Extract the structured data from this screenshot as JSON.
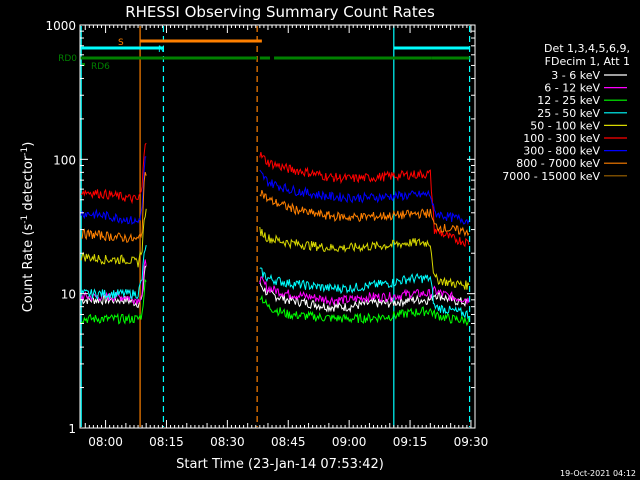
{
  "chart_data": {
    "type": "line",
    "title": "RHESSI Observing Summary Count Rates",
    "xlabel": "Start Time (23-Jan-14 07:53:42)",
    "ylabel_parts": [
      "Count Rate (s",
      "-1",
      " detector",
      "-1",
      ")"
    ],
    "y_scale": "log",
    "ylim": [
      1,
      1000
    ],
    "xlim": [
      "07:53:42",
      "09:31:00"
    ],
    "x_tick_labels": [
      "08:00",
      "08:15",
      "08:30",
      "08:45",
      "09:00",
      "09:15",
      "09:30"
    ],
    "y_tick_labels": [
      "1",
      "10",
      "100",
      "1000"
    ],
    "legend_header": [
      "Det 1,3,4,5,6,9,",
      "FDecim 1, Att 1"
    ],
    "timestamp": "19-Oct-2021 04:12",
    "flags": [
      {
        "label": "S",
        "color": "#ff8000",
        "segments": [
          [
            "08:08:30",
            "08:38:30"
          ]
        ]
      },
      {
        "label": "N",
        "color": "#00ffff",
        "segments": [
          [
            "07:53:42",
            "08:14:15"
          ],
          [
            "09:11:00",
            "09:29:40"
          ]
        ]
      },
      {
        "label": "RD0",
        "color": "#008000",
        "segments": [
          [
            "07:53:42",
            "08:37:20"
          ],
          [
            "08:38:00",
            "08:40:30"
          ],
          [
            "08:41:30",
            "09:20:20"
          ],
          [
            "09:20:20",
            "09:29:40"
          ]
        ]
      },
      {
        "label": "RD6",
        "color": "#008000",
        "segments": []
      }
    ],
    "vertical_markers": [
      {
        "time": "07:54:00",
        "color": "#00ffff",
        "style": "solid"
      },
      {
        "time": "08:14:15",
        "color": "#00ffff",
        "style": "dashed"
      },
      {
        "time": "08:08:30",
        "color": "#ff8000",
        "style": "solid"
      },
      {
        "time": "08:37:20",
        "color": "#ff8000",
        "style": "dashed"
      },
      {
        "time": "09:11:00",
        "color": "#00ffff",
        "style": "solid"
      },
      {
        "time": "09:29:40",
        "color": "#00ffff",
        "style": "dashed"
      }
    ],
    "series": [
      {
        "name": "3 - 6 keV",
        "color": "#ffffff",
        "x": [
          "07:54:00",
          "08:00",
          "08:05",
          "08:08:00",
          "08:09:00",
          "08:09:40",
          "08:37:50",
          "08:40",
          "08:45",
          "08:50",
          "08:55",
          "09:00",
          "09:05",
          "09:10",
          "09:15",
          "09:20:00",
          "09:21:00",
          "09:25",
          "09:29:40"
        ],
        "y": [
          9,
          9,
          9,
          8.5,
          9,
          16,
          12,
          10,
          9,
          8.5,
          8,
          8,
          8.5,
          8.5,
          9,
          9,
          10,
          9,
          8.5
        ]
      },
      {
        "name": "6 - 12 keV",
        "color": "#ff00ff",
        "x": [
          "07:54:00",
          "08:00",
          "08:05",
          "08:08:00",
          "08:09:00",
          "08:09:40",
          "08:37:50",
          "08:40",
          "08:45",
          "08:50",
          "08:55",
          "09:00",
          "09:05",
          "09:10",
          "09:15",
          "09:20:00",
          "09:21:00",
          "09:25",
          "09:29:40"
        ],
        "y": [
          9.5,
          9.5,
          9.5,
          9,
          10,
          17,
          13,
          11,
          10,
          9.5,
          9,
          9,
          9.5,
          9.5,
          10,
          10,
          10.5,
          9.5,
          9
        ]
      },
      {
        "name": "12 - 25 keV",
        "color": "#00ff00",
        "x": [
          "07:54:00",
          "08:00",
          "08:05",
          "08:08:00",
          "08:09:00",
          "08:09:40",
          "08:37:50",
          "08:40",
          "08:45",
          "08:50",
          "08:55",
          "09:00",
          "09:05",
          "09:10",
          "09:15",
          "09:20:00",
          "09:21:00",
          "09:25",
          "09:29:40"
        ],
        "y": [
          6.5,
          6.5,
          6.5,
          6.5,
          7,
          12,
          10,
          8,
          7,
          6.8,
          6.6,
          6.5,
          6.6,
          6.8,
          7.2,
          7.5,
          7,
          6.5,
          6.3
        ]
      },
      {
        "name": "25 - 50 keV",
        "color": "#00ffff",
        "x": [
          "07:54:00",
          "08:00",
          "08:05",
          "08:08:00",
          "08:09:00",
          "08:09:40",
          "08:37:50",
          "08:40",
          "08:45",
          "08:50",
          "08:55",
          "09:00",
          "09:05",
          "09:10",
          "09:15",
          "09:20:00",
          "09:21:00",
          "09:25",
          "09:29:40"
        ],
        "y": [
          10,
          10,
          10,
          10,
          13,
          22,
          15,
          13,
          12,
          11.5,
          11,
          11,
          11.5,
          12,
          13,
          13,
          8,
          7.5,
          7
        ]
      },
      {
        "name": "50 - 100 keV",
        "color": "#d8d800",
        "x": [
          "07:54:00",
          "08:00",
          "08:05",
          "08:08:00",
          "08:09:00",
          "08:09:40",
          "08:37:50",
          "08:40",
          "08:45",
          "08:50",
          "08:55",
          "09:00",
          "09:05",
          "09:10",
          "09:15",
          "09:20:00",
          "09:21:00",
          "09:25",
          "09:29:40"
        ],
        "y": [
          19,
          18,
          18,
          17,
          22,
          40,
          30,
          26,
          24,
          23,
          22,
          22,
          22.5,
          23,
          24,
          24,
          13,
          12,
          11.5
        ]
      },
      {
        "name": "100 - 300 keV",
        "color": "#ff0000",
        "x": [
          "07:54:00",
          "08:00",
          "08:05",
          "08:08:00",
          "08:09:00",
          "08:09:40",
          "08:37:50",
          "08:40",
          "08:45",
          "08:50",
          "08:55",
          "09:00",
          "09:05",
          "09:10",
          "09:15",
          "09:20:00",
          "09:21:00",
          "09:25",
          "09:29:40"
        ],
        "y": [
          58,
          55,
          52,
          50,
          60,
          140,
          110,
          95,
          85,
          80,
          74,
          72,
          73,
          75,
          77,
          78,
          30,
          26,
          24
        ]
      },
      {
        "name": "300 - 800 keV",
        "color": "#0000ff",
        "x": [
          "07:54:00",
          "08:00",
          "08:05",
          "08:08:00",
          "08:09:00",
          "08:09:40",
          "08:37:50",
          "08:40",
          "08:45",
          "08:50",
          "08:55",
          "09:00",
          "09:05",
          "09:10",
          "09:15",
          "09:20:00",
          "09:21:00",
          "09:25",
          "09:29:40"
        ],
        "y": [
          40,
          38,
          36,
          34,
          42,
          100,
          80,
          68,
          60,
          56,
          53,
          52,
          52,
          53,
          54,
          55,
          40,
          37,
          35
        ]
      },
      {
        "name": "800 - 7000 keV",
        "color": "#ff8000",
        "x": [
          "07:54:00",
          "08:00",
          "08:05",
          "08:08:00",
          "08:09:00",
          "08:09:40",
          "08:37:50",
          "08:40",
          "08:45",
          "08:50",
          "08:55",
          "09:00",
          "09:05",
          "09:10",
          "09:15",
          "09:20:00",
          "09:21:00",
          "09:25",
          "09:29:40"
        ],
        "y": [
          28,
          27,
          26,
          25,
          30,
          80,
          60,
          50,
          44,
          40,
          38,
          37,
          37.5,
          38,
          39,
          40,
          32,
          30,
          29
        ]
      },
      {
        "name": "7000 - 15000 keV",
        "color": "#a06400",
        "x": [],
        "y": []
      }
    ]
  }
}
